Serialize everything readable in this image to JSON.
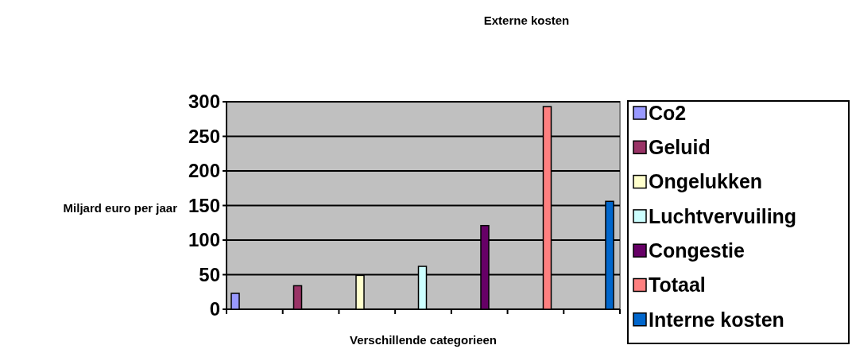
{
  "chart_data": {
    "type": "bar",
    "title": "Externe kosten",
    "xlabel": "Verschillende categorieen",
    "ylabel": "Miljard euro per jaar",
    "categories": [
      null,
      null,
      null,
      null,
      null,
      null,
      null
    ],
    "series": [
      {
        "name": "Co2",
        "color": "#9999ff",
        "values": [
          23,
          null,
          null,
          null,
          null,
          null,
          null
        ]
      },
      {
        "name": "Geluid",
        "color": "#993366",
        "values": [
          null,
          34,
          null,
          null,
          null,
          null,
          null
        ]
      },
      {
        "name": "Ongelukken",
        "color": "#ffffcc",
        "values": [
          null,
          null,
          49,
          null,
          null,
          null,
          null
        ]
      },
      {
        "name": "Luchtvervuiling",
        "color": "#ccffff",
        "values": [
          null,
          null,
          null,
          62,
          null,
          null,
          null
        ]
      },
      {
        "name": "Congestie",
        "color": "#660066",
        "values": [
          null,
          null,
          null,
          null,
          121,
          null,
          null
        ]
      },
      {
        "name": "Totaal",
        "color": "#ff8080",
        "values": [
          null,
          null,
          null,
          null,
          null,
          293,
          null
        ]
      },
      {
        "name": "Interne kosten",
        "color": "#0066cc",
        "values": [
          null,
          null,
          null,
          null,
          null,
          null,
          156
        ]
      }
    ],
    "ylim": [
      0,
      300
    ],
    "yticks": [
      0,
      50,
      100,
      150,
      200,
      250,
      300
    ],
    "grid": "y",
    "legend": "right"
  }
}
